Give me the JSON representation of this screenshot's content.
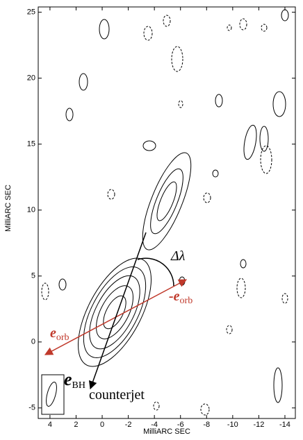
{
  "chart_data": {
    "type": "contour",
    "x_label": "MilliARC SEC",
    "y_label": "MilliARC SEC",
    "xlim": [
      4.9,
      -14.8
    ],
    "ylim": [
      -5.8,
      25.4
    ],
    "xticks": [
      4,
      2,
      0,
      -2,
      -4,
      -6,
      -8,
      -10,
      -12,
      -14
    ],
    "yticks": [
      -5,
      0,
      5,
      10,
      15,
      20,
      25
    ],
    "annotations": [
      {
        "main": "Δλ",
        "color": "#000000"
      },
      {
        "main": "-e",
        "sub": "orb",
        "color": "#c0392b"
      },
      {
        "main": "e",
        "sub": "orb",
        "color": "#c0392b"
      },
      {
        "main": "e",
        "sub": "BH",
        "color": "#000000"
      },
      {
        "main": "counterjet",
        "color": "#000000"
      }
    ]
  }
}
